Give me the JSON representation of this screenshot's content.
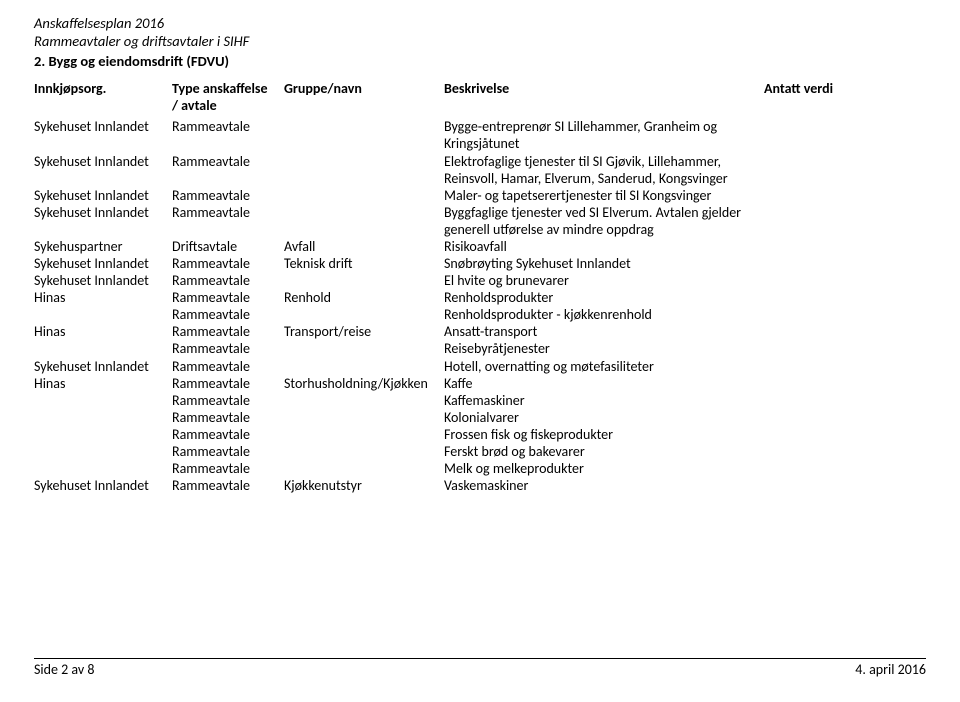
{
  "header": {
    "line1": "Anskaffelsesplan 2016",
    "line2": "Rammeavtaler og driftsavtaler i SIHF",
    "section": "2. Bygg og eiendomsdrift (FDVU)"
  },
  "columns": {
    "org": "Innkjøpsorg.",
    "type_l1": "Type anskaffelse",
    "type_l2": "/ avtale",
    "group": "Gruppe/navn",
    "desc": "Beskrivelse",
    "value": "Antatt verdi"
  },
  "rows": [
    {
      "org": "Sykehuset Innlandet",
      "type": "Rammeavtale",
      "group": "",
      "desc": "Bygge-entreprenør SI Lillehammer, Granheim og Kringsjåtunet"
    },
    {
      "org": "Sykehuset Innlandet",
      "type": "Rammeavtale",
      "group": "",
      "desc": "Elektrofaglige tjenester til SI Gjøvik, Lillehammer, Reinsvoll, Hamar, Elverum, Sanderud, Kongsvinger"
    },
    {
      "org": "Sykehuset Innlandet",
      "type": "Rammeavtale",
      "group": "",
      "desc": "Maler- og tapetserertjenester til SI Kongsvinger"
    },
    {
      "org": "Sykehuset Innlandet",
      "type": "Rammeavtale",
      "group": "",
      "desc": "Byggfaglige tjenester ved SI Elverum. Avtalen gjelder generell utførelse av mindre oppdrag"
    },
    {
      "org": "Sykehuspartner",
      "type": "Driftsavtale",
      "group": "Avfall",
      "desc": "Risikoavfall"
    },
    {
      "org": "Sykehuset Innlandet",
      "type": "Rammeavtale",
      "group": "Teknisk drift",
      "desc": "Snøbrøyting Sykehuset Innlandet"
    },
    {
      "org": "Sykehuset Innlandet",
      "type": "Rammeavtale",
      "group": "",
      "desc": "El hvite og brunevarer"
    },
    {
      "org": "Hinas",
      "type": "Rammeavtale",
      "group": "Renhold",
      "desc": "Renholdsprodukter"
    },
    {
      "org": "",
      "type": "Rammeavtale",
      "group": "",
      "desc": "Renholdsprodukter - kjøkkenrenhold"
    },
    {
      "org": "Hinas",
      "type": "Rammeavtale",
      "group": "Transport/reise",
      "desc": "Ansatt-transport"
    },
    {
      "org": "",
      "type": "Rammeavtale",
      "group": "",
      "desc": "Reisebyråtjenester"
    },
    {
      "org": "Sykehuset Innlandet",
      "type": "Rammeavtale",
      "group": "",
      "desc": "Hotell, overnatting og møtefasiliteter"
    },
    {
      "org": "Hinas",
      "type": "Rammeavtale",
      "group": "Storhusholdning/Kjøkken",
      "desc": "Kaffe"
    },
    {
      "org": "",
      "type": "Rammeavtale",
      "group": "",
      "desc": "Kaffemaskiner"
    },
    {
      "org": "",
      "type": "Rammeavtale",
      "group": "",
      "desc": "Kolonialvarer"
    },
    {
      "org": "",
      "type": "Rammeavtale",
      "group": "",
      "desc": "Frossen fisk og fiskeprodukter"
    },
    {
      "org": "",
      "type": "Rammeavtale",
      "group": "",
      "desc": "Ferskt brød og bakevarer"
    },
    {
      "org": "",
      "type": "Rammeavtale",
      "group": "",
      "desc": "Melk og melkeprodukter"
    },
    {
      "org": "Sykehuset Innlandet",
      "type": "Rammeavtale",
      "group": "Kjøkkenutstyr",
      "desc": "Vaskemaskiner"
    }
  ],
  "footer": {
    "left": "Side 2 av 8",
    "right": "4. april 2016"
  }
}
